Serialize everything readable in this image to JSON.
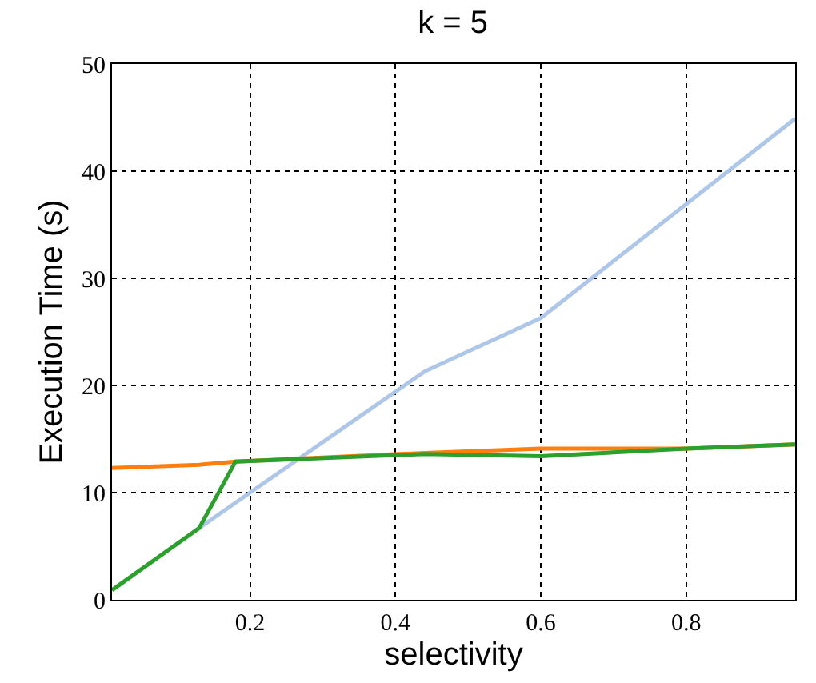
{
  "chart_data": {
    "type": "line",
    "title": "k = 5",
    "xlabel": "selectivity",
    "ylabel": "Execution Time (s)",
    "xlim": [
      0.01,
      0.95
    ],
    "xticks": [
      0.2,
      0.4,
      0.6,
      0.8
    ],
    "ylim": [
      0,
      50
    ],
    "yticks": [
      0,
      10,
      20,
      30,
      40,
      50
    ],
    "grid": true,
    "line_style": "solid",
    "marker": "none",
    "series": [
      {
        "color": "#aec7e8",
        "x": [
          0.13,
          0.2,
          0.44,
          0.6,
          0.95
        ],
        "values": [
          6.7,
          10,
          21.3,
          26.3,
          44.9
        ]
      },
      {
        "color": "#ff7f0e",
        "x": [
          0.01,
          0.13,
          0.18,
          0.44,
          0.6,
          0.8,
          0.95
        ],
        "values": [
          12.3,
          12.6,
          12.9,
          13.7,
          14.1,
          14.1,
          14.5
        ]
      },
      {
        "color": "#2ca02c",
        "x": [
          0.01,
          0.13,
          0.18,
          0.44,
          0.6,
          0.8,
          0.95
        ],
        "values": [
          0.9,
          6.7,
          12.9,
          13.6,
          13.4,
          14.1,
          14.5
        ]
      }
    ]
  }
}
